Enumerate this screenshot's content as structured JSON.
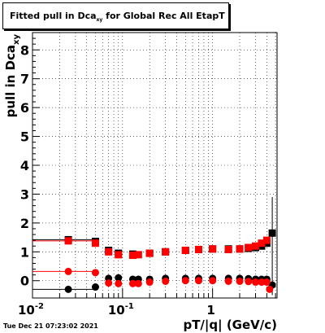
{
  "title_main": "Fitted pull in Dca",
  "title_sub": "xy",
  "title_rest": " for Global Rec All EtapT",
  "timestamp": "Tue Dec 21 07:23:02 2021",
  "colors": {
    "black": "#000000",
    "red": "#ff0000"
  },
  "chart_data": {
    "type": "scatter",
    "title": "Fitted pull in Dca xy for Global Rec All EtapT",
    "xlabel": "pT/|q| (GeV/c)",
    "ylabel": "pull in Dca xy",
    "xscale": "log",
    "xlim": [
      0.01,
      5.2
    ],
    "ylim": [
      -0.6,
      8.6
    ],
    "grid": true,
    "y_ticks": [
      0,
      1,
      2,
      3,
      4,
      5,
      6,
      7,
      8
    ],
    "y_tick_labels": [
      "0",
      "1",
      "2",
      "3",
      "4",
      "5",
      "6",
      "7",
      "8"
    ],
    "x_major_ticks": [
      {
        "value": 0.01,
        "base": "10",
        "exp": "-2"
      },
      {
        "value": 0.1,
        "base": "10",
        "exp": "-1"
      },
      {
        "value": 1,
        "base": "1",
        "exp": ""
      }
    ],
    "series": [
      {
        "color": "#000000",
        "marker": "square",
        "x": [
          0.025,
          0.05,
          0.07,
          0.09,
          0.13,
          0.2,
          0.3,
          0.5,
          0.7,
          1.0,
          1.5,
          2.0,
          2.5,
          3.0,
          3.5,
          4.0,
          4.6
        ],
        "y": [
          1.42,
          1.36,
          1.05,
          0.95,
          0.92,
          0.95,
          1.0,
          1.05,
          1.08,
          1.1,
          1.1,
          1.1,
          1.12,
          1.15,
          1.2,
          1.3,
          1.65
        ]
      },
      {
        "color": "#ff0000",
        "marker": "square",
        "x": [
          0.025,
          0.05,
          0.07,
          0.09,
          0.13,
          0.15,
          0.2,
          0.3,
          0.5,
          0.7,
          1.0,
          1.5,
          2.0,
          2.5,
          3.0,
          3.5,
          4.0
        ],
        "y": [
          1.38,
          1.3,
          1.0,
          0.9,
          0.88,
          0.9,
          0.95,
          1.0,
          1.05,
          1.08,
          1.1,
          1.08,
          1.1,
          1.15,
          1.2,
          1.3,
          1.4
        ]
      },
      {
        "color": "#000000",
        "marker": "circle",
        "x": [
          0.025,
          0.05,
          0.07,
          0.09,
          0.13,
          0.15,
          0.2,
          0.3,
          0.5,
          0.7,
          1.0,
          1.5,
          2.0,
          2.5,
          3.0,
          3.5,
          4.0,
          4.6
        ],
        "y": [
          -0.3,
          -0.22,
          0.08,
          0.1,
          0.05,
          0.05,
          0.05,
          0.08,
          0.08,
          0.08,
          0.08,
          0.08,
          0.08,
          0.07,
          0.05,
          0.05,
          0.05,
          -0.15
        ]
      },
      {
        "color": "#ff0000",
        "marker": "circle",
        "x": [
          0.025,
          0.05,
          0.07,
          0.09,
          0.13,
          0.15,
          0.2,
          0.3,
          0.5,
          0.7,
          1.0,
          1.5,
          2.0,
          2.5,
          3.0,
          3.5,
          4.0,
          4.3
        ],
        "y": [
          0.32,
          0.28,
          -0.08,
          -0.1,
          -0.1,
          -0.1,
          -0.05,
          -0.02,
          0.0,
          0.0,
          0.0,
          -0.02,
          -0.02,
          -0.03,
          -0.05,
          -0.05,
          -0.05,
          -0.3
        ]
      }
    ]
  }
}
